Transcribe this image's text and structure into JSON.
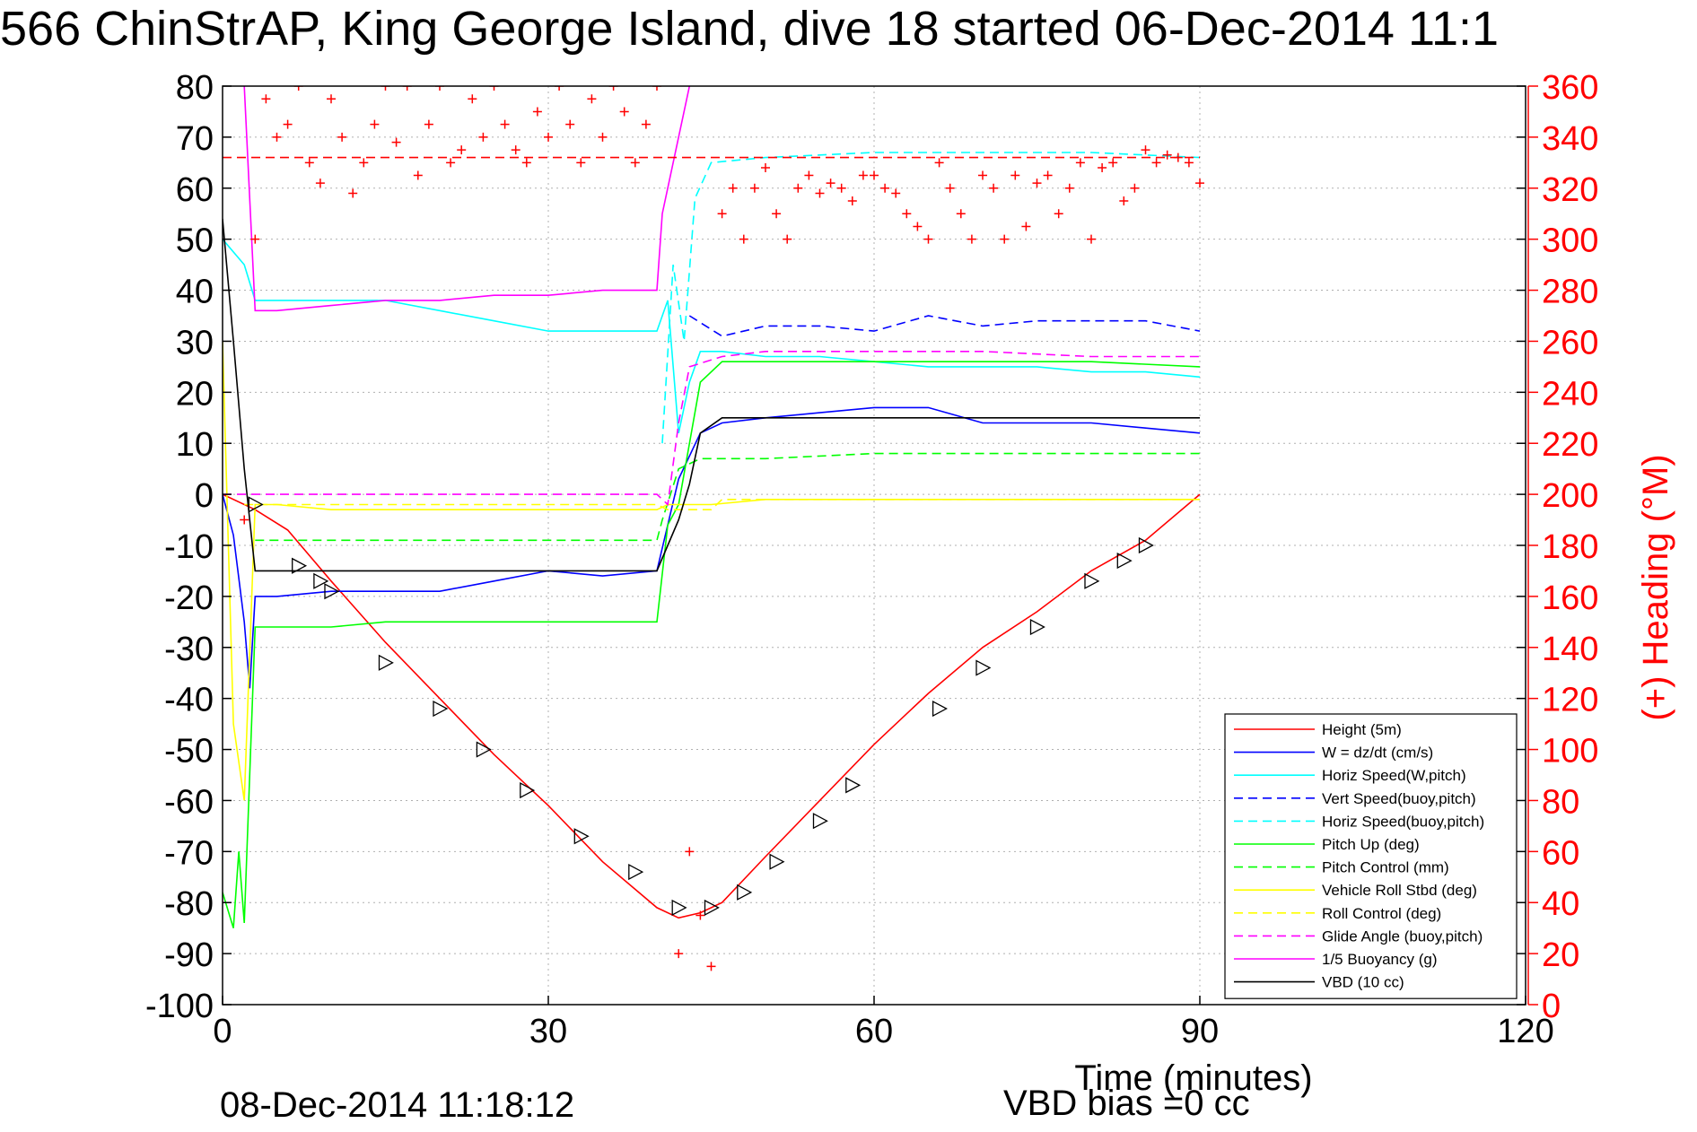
{
  "chart_data": {
    "type": "line",
    "title": "566 ChinStrAP, King George Island, dive 18 started 06-Dec-2014 11:1",
    "xlabel": "Time (minutes)",
    "ylabel": "",
    "ylabel_right": "(+) Heading (°M)",
    "xlim": [
      0,
      120
    ],
    "ylim": [
      -100,
      80
    ],
    "ylim_right": [
      0,
      360
    ],
    "xticks": [
      "0",
      "30",
      "60",
      "90",
      "120"
    ],
    "yticks": [
      "80",
      "70",
      "60",
      "50",
      "40",
      "30",
      "20",
      "10",
      "0",
      "-10",
      "-20",
      "-30",
      "-40",
      "-50",
      "-60",
      "-70",
      "-80",
      "-90",
      "-100"
    ],
    "yticks_right": [
      "360",
      "340",
      "320",
      "300",
      "280",
      "260",
      "240",
      "220",
      "200",
      "180",
      "160",
      "140",
      "120",
      "100",
      "80",
      "60",
      "40",
      "20",
      "0"
    ],
    "grid": true,
    "legend_position": "bottom-right",
    "footer_date": "08-Dec-2014 11:18:12",
    "footer_bias": "VBD bias =0 cc",
    "series": [
      {
        "name": "Height (5m)",
        "color": "#ff0000",
        "style": "solid",
        "x": [
          0,
          3,
          6,
          10,
          15,
          20,
          25,
          30,
          35,
          40,
          42,
          44,
          46,
          50,
          55,
          60,
          65,
          70,
          75,
          80,
          85,
          90
        ],
        "y": [
          0,
          -3,
          -7,
          -17,
          -29,
          -40,
          -51,
          -61,
          -72,
          -81,
          -83,
          -82,
          -80,
          -71,
          -60,
          -49,
          -39,
          -30,
          -23,
          -15,
          -9,
          0
        ]
      },
      {
        "name": "W = dz/dt (cm/s)",
        "color": "#0000ff",
        "style": "solid",
        "x": [
          0,
          1,
          2,
          2.5,
          3,
          5,
          10,
          15,
          20,
          25,
          30,
          35,
          40,
          42,
          44,
          46,
          50,
          55,
          60,
          65,
          70,
          75,
          80,
          85,
          90
        ],
        "y": [
          0,
          -8,
          -25,
          -38,
          -20,
          -20,
          -19,
          -19,
          -19,
          -17,
          -15,
          -16,
          -15,
          3,
          12,
          14,
          15,
          16,
          17,
          17,
          14,
          14,
          14,
          13,
          12
        ]
      },
      {
        "name": "Horiz Speed(W,pitch)",
        "color": "#00ffff",
        "style": "solid",
        "x": [
          0,
          2,
          3,
          5,
          10,
          15,
          20,
          25,
          30,
          35,
          40,
          41,
          42,
          43,
          44,
          46,
          50,
          55,
          60,
          65,
          70,
          75,
          80,
          85,
          90
        ],
        "y": [
          50,
          45,
          38,
          38,
          38,
          38,
          36,
          34,
          32,
          32,
          32,
          38,
          12,
          22,
          28,
          28,
          27,
          27,
          26,
          25,
          25,
          25,
          24,
          24,
          23
        ]
      },
      {
        "name": "Vert Speed(buoy,pitch)",
        "color": "#0000ff",
        "style": "dashed",
        "x": [
          43,
          46,
          50,
          55,
          60,
          65,
          70,
          75,
          80,
          85,
          90
        ],
        "y": [
          35,
          31,
          33,
          33,
          32,
          35,
          33,
          34,
          34,
          34,
          32
        ]
      },
      {
        "name": "Horiz Speed(buoy,pitch)",
        "color": "#00ffff",
        "style": "dashed",
        "x": [
          40.5,
          41.5,
          42.5,
          43.5,
          45,
          50,
          60,
          70,
          80,
          90
        ],
        "y": [
          10,
          45,
          30,
          58,
          65,
          66,
          67,
          67,
          67,
          66
        ]
      },
      {
        "name": "Pitch Up (deg)",
        "color": "#00ff00",
        "style": "solid",
        "x": [
          0,
          1,
          1.5,
          2,
          3,
          5,
          10,
          15,
          20,
          25,
          30,
          35,
          40,
          41,
          42,
          44,
          46,
          50,
          60,
          70,
          80,
          90
        ],
        "y": [
          -78,
          -85,
          -70,
          -84,
          -26,
          -26,
          -26,
          -25,
          -25,
          -25,
          -25,
          -25,
          -25,
          -6,
          -2,
          22,
          26,
          26,
          26,
          26,
          26,
          25
        ]
      },
      {
        "name": "Pitch Control (mm)",
        "color": "#00ff00",
        "style": "dashed",
        "x": [
          3,
          40,
          40.5,
          42,
          44,
          50,
          60,
          70,
          80,
          90
        ],
        "y": [
          -9,
          -9,
          -5,
          5,
          7,
          7,
          8,
          8,
          8,
          8
        ]
      },
      {
        "name": "Vehicle Roll Stbd (deg)",
        "color": "#ffff00",
        "style": "solid",
        "x": [
          0,
          1,
          2,
          3,
          5,
          10,
          20,
          30,
          40,
          41,
          45,
          50,
          60,
          70,
          80,
          90
        ],
        "y": [
          30,
          -45,
          -60,
          -2,
          -2,
          -3,
          -3,
          -3,
          -3,
          -2,
          -2,
          -1,
          -1,
          -1,
          -1,
          -1
        ]
      },
      {
        "name": "Roll Control (deg)",
        "color": "#ffff00",
        "style": "dashed",
        "x": [
          2,
          10,
          20,
          30,
          40,
          41,
          45,
          46,
          50,
          60,
          70,
          80,
          90
        ],
        "y": [
          -2,
          -2,
          -2,
          -2,
          -2,
          -3,
          -3,
          -1,
          -1,
          -1,
          -1,
          -1,
          -1
        ]
      },
      {
        "name": "Glide Angle (buoy,pitch)",
        "color": "#ff00ff",
        "style": "dashed",
        "x": [
          0,
          10,
          20,
          30,
          40,
          41,
          42,
          43,
          46,
          50,
          60,
          70,
          80,
          90
        ],
        "y": [
          0,
          0,
          0,
          0,
          0,
          -2,
          14,
          25,
          27,
          28,
          28,
          28,
          27,
          27
        ]
      },
      {
        "name": "1/5 Buoyancy (g)",
        "color": "#ff00ff",
        "style": "solid",
        "x": [
          2,
          3,
          5,
          10,
          15,
          20,
          25,
          30,
          35,
          40,
          40.5,
          43
        ],
        "y": [
          80,
          36,
          36,
          37,
          38,
          38,
          39,
          39,
          40,
          40,
          55,
          80
        ]
      },
      {
        "name": "VBD (10 cc)",
        "color": "#000000",
        "style": "solid",
        "x": [
          0,
          1,
          2,
          3,
          10,
          20,
          30,
          40,
          41,
          42,
          43,
          44,
          46,
          50,
          60,
          70,
          80,
          90
        ],
        "y": [
          54,
          30,
          5,
          -15,
          -15,
          -15,
          -15,
          -15,
          -10,
          -5,
          2,
          12,
          15,
          15,
          15,
          15,
          15,
          15
        ]
      },
      {
        "name": "(+) Heading (°M)",
        "color": "#ff0000",
        "style": "markers",
        "axis": "right",
        "x": [
          2,
          3,
          4,
          5,
          6,
          7,
          8,
          9,
          10,
          11,
          12,
          13,
          14,
          15,
          16,
          17,
          18,
          19,
          20,
          21,
          22,
          23,
          24,
          25,
          26,
          27,
          28,
          29,
          30,
          31,
          32,
          33,
          34,
          35,
          36,
          37,
          38,
          39,
          40,
          42,
          43,
          44,
          45,
          46,
          47,
          48,
          49,
          50,
          51,
          52,
          53,
          54,
          55,
          56,
          57,
          58,
          59,
          60,
          61,
          62,
          63,
          64,
          65,
          66,
          67,
          68,
          69,
          70,
          71,
          72,
          73,
          74,
          75,
          76,
          77,
          78,
          79,
          80,
          81,
          82,
          83,
          84,
          85,
          86,
          87,
          88,
          89,
          90
        ],
        "y": [
          190,
          300,
          355,
          340,
          345,
          360,
          330,
          322,
          355,
          340,
          318,
          330,
          345,
          360,
          338,
          360,
          325,
          345,
          360,
          330,
          335,
          355,
          340,
          360,
          345,
          335,
          330,
          350,
          340,
          360,
          345,
          330,
          355,
          340,
          360,
          350,
          330,
          345,
          360,
          20,
          60,
          35,
          15,
          310,
          320,
          300,
          320,
          328,
          310,
          300,
          320,
          325,
          318,
          322,
          320,
          315,
          325,
          325,
          320,
          318,
          310,
          305,
          300,
          330,
          320,
          310,
          300,
          325,
          320,
          300,
          325,
          305,
          322,
          325,
          310,
          320,
          330,
          300,
          328,
          330,
          315,
          320,
          335,
          330,
          333,
          332,
          330,
          322
        ]
      },
      {
        "name": "",
        "color": "#ff0000",
        "style": "dashed",
        "axis": "right",
        "x": [
          0,
          90
        ],
        "y": [
          332,
          332
        ]
      }
    ],
    "markers": {
      "description": "GPS/fix triangles on Height curve",
      "x": [
        3,
        7,
        9,
        10,
        15,
        20,
        24,
        28,
        33,
        38,
        42,
        45,
        48,
        51,
        55,
        58,
        66,
        70,
        75,
        80,
        83,
        85
      ],
      "y": [
        -2,
        -14,
        -17,
        -19,
        -33,
        -42,
        -50,
        -58,
        -67,
        -74,
        -81,
        -81,
        -78,
        -72,
        -64,
        -57,
        -42,
        -34,
        -26,
        -17,
        -13,
        -10
      ]
    }
  }
}
